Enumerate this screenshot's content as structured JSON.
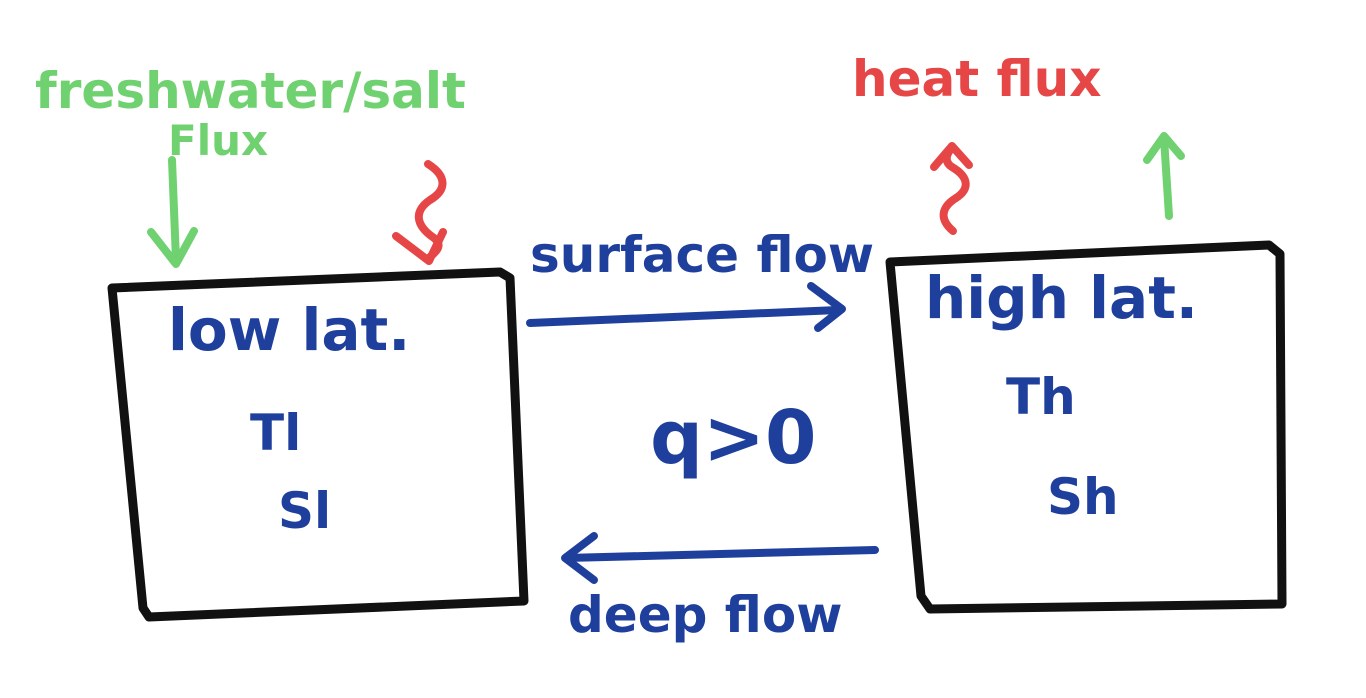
{
  "colors": {
    "green": "#6fd16f",
    "red": "#e64646",
    "blue": "#1f3f9c",
    "black": "#111111"
  },
  "labels": {
    "freshwater_salt": "freshwater/salt",
    "flux": "Flux",
    "heat_flux": "heat flux",
    "surface_flow": "surface flow",
    "deep_flow": "deep flow",
    "condition": "q>0"
  },
  "low_box": {
    "title": "low lat.",
    "temperature": "Tl",
    "salinity": "Sl"
  },
  "high_box": {
    "title": "high lat.",
    "temperature": "Th",
    "salinity": "Sh"
  },
  "icons": {
    "freshwater_arrow": "arrow-down",
    "low_heat_arrow": "wavy-arrow-down",
    "high_heat_arrow": "wavy-arrow-up",
    "high_freshwater_arrow": "arrow-up",
    "surface_flow_arrow": "arrow-right",
    "deep_flow_arrow": "arrow-left"
  }
}
